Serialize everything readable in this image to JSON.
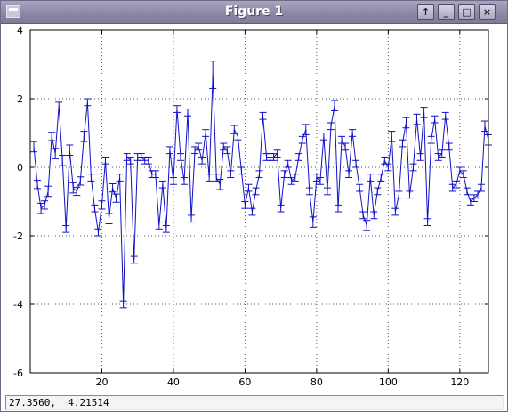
{
  "window": {
    "title": "Figure 1"
  },
  "icons": {
    "app": "figure-window-icon",
    "pin": "pin-up-arrow-icon",
    "minimize": "minimize-icon",
    "maximize": "maximize-icon",
    "close": "close-icon"
  },
  "buttons": {
    "pin": "↑",
    "minimize": "_",
    "maximize": "□",
    "close": "×"
  },
  "status": {
    "coords": "27.3560,  4.21514"
  },
  "colors": {
    "line": "#1010c8",
    "grid": "#555555",
    "titlebar": "#8c88a6"
  },
  "chart_data": {
    "type": "line",
    "style": "errorbar",
    "title": "",
    "xlabel": "",
    "ylabel": "",
    "xlim": [
      0,
      128
    ],
    "ylim": [
      -6,
      4
    ],
    "xticks": [
      20,
      40,
      60,
      80,
      100,
      120
    ],
    "yticks": [
      -6,
      -4,
      -2,
      0,
      2,
      4
    ],
    "grid": true,
    "series": [
      {
        "x": [
          1,
          2,
          3,
          4,
          5,
          6,
          7,
          8,
          9,
          10,
          11,
          12,
          13,
          14,
          15,
          16,
          17,
          18,
          19,
          20,
          21,
          22,
          23,
          24,
          25,
          26,
          27,
          28,
          29,
          30,
          31,
          32,
          33,
          34,
          35,
          36,
          37,
          38,
          39,
          40,
          41,
          42,
          43,
          44,
          45,
          46,
          47,
          48,
          49,
          50,
          51,
          52,
          53,
          54,
          55,
          56,
          57,
          58,
          59,
          60,
          61,
          62,
          63,
          64,
          65,
          66,
          67,
          68,
          69,
          70,
          71,
          72,
          73,
          74,
          75,
          76,
          77,
          78,
          79,
          80,
          81,
          82,
          83,
          84,
          85,
          86,
          87,
          88,
          89,
          90,
          91,
          92,
          93,
          94,
          95,
          96,
          97,
          98,
          99,
          100,
          101,
          102,
          103,
          104,
          105,
          106,
          107,
          108,
          109,
          110,
          111,
          112,
          113,
          114,
          115,
          116,
          117,
          118,
          119,
          120,
          121,
          122,
          123,
          124,
          125,
          126,
          127,
          128
        ],
        "y": [
          0.6,
          -0.5,
          -1.2,
          -1.1,
          -0.7,
          0.9,
          0.4,
          1.8,
          0.2,
          -1.8,
          0.5,
          -0.6,
          -0.7,
          -0.4,
          0.9,
          1.9,
          -0.3,
          -1.2,
          -1.9,
          -1.1,
          0.2,
          -1.5,
          -0.6,
          -0.9,
          -0.3,
          -4.0,
          0.3,
          0.2,
          -2.7,
          0.3,
          0.3,
          0.2,
          0.2,
          -0.2,
          -0.2,
          -1.7,
          -0.5,
          -1.8,
          0.5,
          -0.4,
          1.7,
          0.3,
          -0.4,
          1.6,
          -1.5,
          0.5,
          0.6,
          0.2,
          1.0,
          -0.3,
          2.7,
          -0.3,
          -0.5,
          0.6,
          0.5,
          -0.2,
          1.1,
          0.9,
          -0.1,
          -1.1,
          -0.6,
          -1.3,
          -0.7,
          -0.2,
          1.5,
          0.3,
          0.3,
          0.3,
          0.4,
          -1.2,
          -0.2,
          0.1,
          -0.4,
          -0.3,
          0.3,
          0.8,
          1.1,
          -0.7,
          -1.6,
          -0.3,
          -0.4,
          0.9,
          -0.7,
          1.2,
          1.8,
          -1.2,
          0.8,
          0.6,
          -0.2,
          1.0,
          0.1,
          -0.6,
          -1.4,
          -1.7,
          -0.3,
          -1.4,
          -0.7,
          -0.3,
          0.2,
          0.0,
          0.9,
          -1.3,
          -0.8,
          0.7,
          1.3,
          -0.8,
          0.0,
          1.4,
          0.3,
          1.6,
          -1.6,
          0.8,
          1.4,
          0.3,
          0.4,
          1.5,
          0.6,
          -0.6,
          -0.5,
          -0.1,
          -0.2,
          -0.7,
          -1.0,
          -0.9,
          -0.8,
          -0.6,
          1.2,
          0.8
        ],
        "err": [
          0.15,
          0.12,
          0.15,
          0.12,
          0.15,
          0.12,
          0.15,
          0.1,
          0.15,
          0.1,
          0.15,
          0.15,
          0.12,
          0.12,
          0.15,
          0.1,
          0.1,
          0.1,
          0.1,
          0.12,
          0.1,
          0.15,
          0.12,
          0.12,
          0.1,
          0.1,
          0.1,
          0.1,
          0.1,
          0.1,
          0.1,
          0.1,
          0.1,
          0.1,
          0.1,
          0.1,
          0.1,
          0.1,
          0.1,
          0.1,
          0.1,
          0.1,
          0.1,
          0.1,
          0.1,
          0.1,
          0.1,
          0.1,
          0.1,
          0.1,
          0.4,
          0.1,
          0.15,
          0.1,
          0.1,
          0.1,
          0.12,
          0.1,
          0.1,
          0.1,
          0.1,
          0.1,
          0.1,
          0.1,
          0.1,
          0.1,
          0.1,
          0.1,
          0.1,
          0.1,
          0.1,
          0.1,
          0.1,
          0.1,
          0.1,
          0.1,
          0.15,
          0.1,
          0.15,
          0.1,
          0.1,
          0.1,
          0.1,
          0.1,
          0.15,
          0.1,
          0.1,
          0.1,
          0.1,
          0.1,
          0.1,
          0.1,
          0.1,
          0.15,
          0.1,
          0.1,
          0.1,
          0.1,
          0.1,
          0.1,
          0.15,
          0.1,
          0.1,
          0.1,
          0.15,
          0.1,
          0.1,
          0.15,
          0.1,
          0.15,
          0.1,
          0.1,
          0.1,
          0.1,
          0.1,
          0.1,
          0.1,
          0.1,
          0.1,
          0.1,
          0.1,
          0.1,
          0.1,
          0.1,
          0.1,
          0.1,
          0.15,
          0.15
        ]
      }
    ]
  }
}
